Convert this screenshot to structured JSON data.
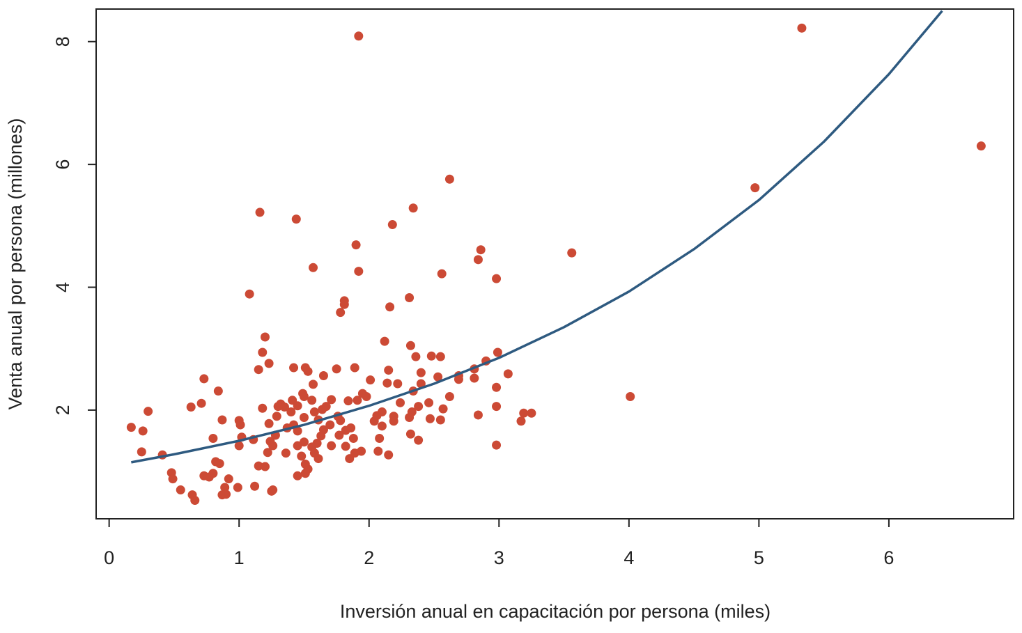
{
  "chart_data": {
    "type": "scatter",
    "xlabel": "Inversión anual en capacitación por persona (miles)",
    "ylabel": "Venta anual por persona (millones)",
    "color": "#cc4a35",
    "x": [
      1.92,
      5.33,
      6.71,
      4.97,
      3.56,
      4.01,
      2.62,
      2.34,
      2.18,
      1.16,
      1.44,
      1.9,
      2.86,
      2.84,
      1.57,
      1.92,
      2.56,
      2.98,
      1.08,
      2.31,
      1.81,
      1.81,
      2.16,
      1.78,
      1.2,
      2.12,
      2.32,
      1.18,
      2.99,
      2.48,
      2.55,
      2.36,
      1.23,
      2.9,
      1.15,
      1.42,
      1.51,
      1.53,
      1.75,
      1.89,
      2.15,
      2.81,
      3.07,
      0.73,
      1.65,
      2.53,
      2.69,
      2.69,
      2.81,
      2.4,
      2.01,
      1.57,
      2.14,
      2.22,
      2.4,
      2.98,
      0.84,
      1.49,
      1.95,
      2.34,
      2.62,
      1.5,
      1.98,
      1.41,
      1.56,
      1.71,
      1.84,
      1.91,
      2.24,
      2.46,
      0.71,
      1.32,
      1.35,
      1.45,
      0.63,
      1.18,
      1.3,
      1.64,
      1.67,
      2.38,
      2.98,
      2.57,
      0.3,
      1.4,
      1.58,
      2.1,
      2.33,
      2.84,
      3.19,
      3.25,
      1.76,
      2.06,
      2.19,
      1.29,
      1.5,
      2.31,
      2.47,
      0.87,
      1.0,
      1.61,
      1.78,
      2.04,
      2.19,
      2.55,
      3.17,
      1.01,
      1.23,
      1.42,
      1.7,
      2.1,
      1.86,
      0.17,
      0.26,
      1.37,
      1.45,
      1.65,
      1.82,
      2.32,
      0.8,
      1.02,
      1.11,
      1.28,
      1.63,
      1.77,
      2.08,
      2.38,
      1.24,
      1.5,
      1.6,
      1.88,
      1.0,
      1.26,
      1.45,
      1.56,
      1.71,
      1.82,
      2.98,
      0.25,
      0.41,
      1.22,
      1.36,
      1.58,
      1.89,
      1.94,
      2.07,
      2.15,
      1.48,
      1.61,
      1.85,
      0.82,
      0.85,
      1.15,
      1.2,
      1.51,
      1.53,
      0.48,
      0.8,
      0.73,
      0.77,
      1.45,
      1.51,
      0.49,
      0.92,
      0.55,
      0.89,
      0.99,
      1.12,
      1.25,
      0.87,
      0.9,
      0.64,
      0.66,
      1.26
    ],
    "values": [
      8.09,
      8.22,
      6.3,
      5.62,
      4.56,
      2.22,
      5.76,
      5.29,
      5.02,
      5.22,
      5.11,
      4.69,
      4.61,
      4.45,
      4.32,
      4.26,
      4.22,
      4.14,
      3.89,
      3.83,
      3.78,
      3.72,
      3.68,
      3.59,
      3.19,
      3.12,
      3.05,
      2.94,
      2.94,
      2.88,
      2.87,
      2.87,
      2.76,
      2.8,
      2.66,
      2.69,
      2.69,
      2.63,
      2.67,
      2.69,
      2.65,
      2.67,
      2.59,
      2.51,
      2.56,
      2.54,
      2.56,
      2.5,
      2.52,
      2.61,
      2.49,
      2.42,
      2.44,
      2.43,
      2.43,
      2.37,
      2.31,
      2.27,
      2.27,
      2.31,
      2.22,
      2.22,
      2.22,
      2.16,
      2.16,
      2.17,
      2.15,
      2.16,
      2.12,
      2.12,
      2.11,
      2.1,
      2.05,
      2.07,
      2.05,
      2.03,
      2.06,
      2.01,
      2.06,
      2.06,
      2.06,
      2.02,
      1.98,
      1.97,
      1.97,
      1.97,
      1.97,
      1.92,
      1.95,
      1.95,
      1.9,
      1.91,
      1.9,
      1.9,
      1.88,
      1.88,
      1.86,
      1.84,
      1.83,
      1.84,
      1.83,
      1.82,
      1.82,
      1.84,
      1.82,
      1.76,
      1.78,
      1.76,
      1.76,
      1.74,
      1.71,
      1.72,
      1.66,
      1.71,
      1.66,
      1.68,
      1.67,
      1.61,
      1.54,
      1.56,
      1.52,
      1.59,
      1.58,
      1.59,
      1.54,
      1.51,
      1.49,
      1.48,
      1.46,
      1.54,
      1.42,
      1.42,
      1.42,
      1.4,
      1.42,
      1.41,
      1.43,
      1.32,
      1.27,
      1.31,
      1.3,
      1.3,
      1.3,
      1.33,
      1.33,
      1.27,
      1.25,
      1.21,
      1.21,
      1.16,
      1.13,
      1.09,
      1.08,
      1.12,
      1.04,
      0.98,
      0.97,
      0.93,
      0.91,
      0.93,
      0.97,
      0.88,
      0.88,
      0.7,
      0.74,
      0.74,
      0.76,
      0.68,
      0.62,
      0.63,
      0.62,
      0.53,
      0.7
    ],
    "fit": {
      "color": "#2e5a80",
      "x": [
        0.17,
        0.5,
        1,
        1.5,
        2,
        2.5,
        3,
        3.5,
        4,
        4.5,
        5,
        5.5,
        6,
        6.41
      ],
      "values": [
        1.15,
        1.28,
        1.5,
        1.76,
        2.07,
        2.43,
        2.85,
        3.35,
        3.93,
        4.62,
        5.42,
        6.37,
        7.47,
        8.5
      ]
    },
    "xlim": [
      -0.1,
      6.96
    ],
    "xticks": [
      0,
      1,
      2,
      3,
      4,
      5,
      6
    ],
    "ylim": [
      0.23,
      8.53
    ],
    "yticks": [
      2,
      4,
      6,
      8
    ]
  }
}
